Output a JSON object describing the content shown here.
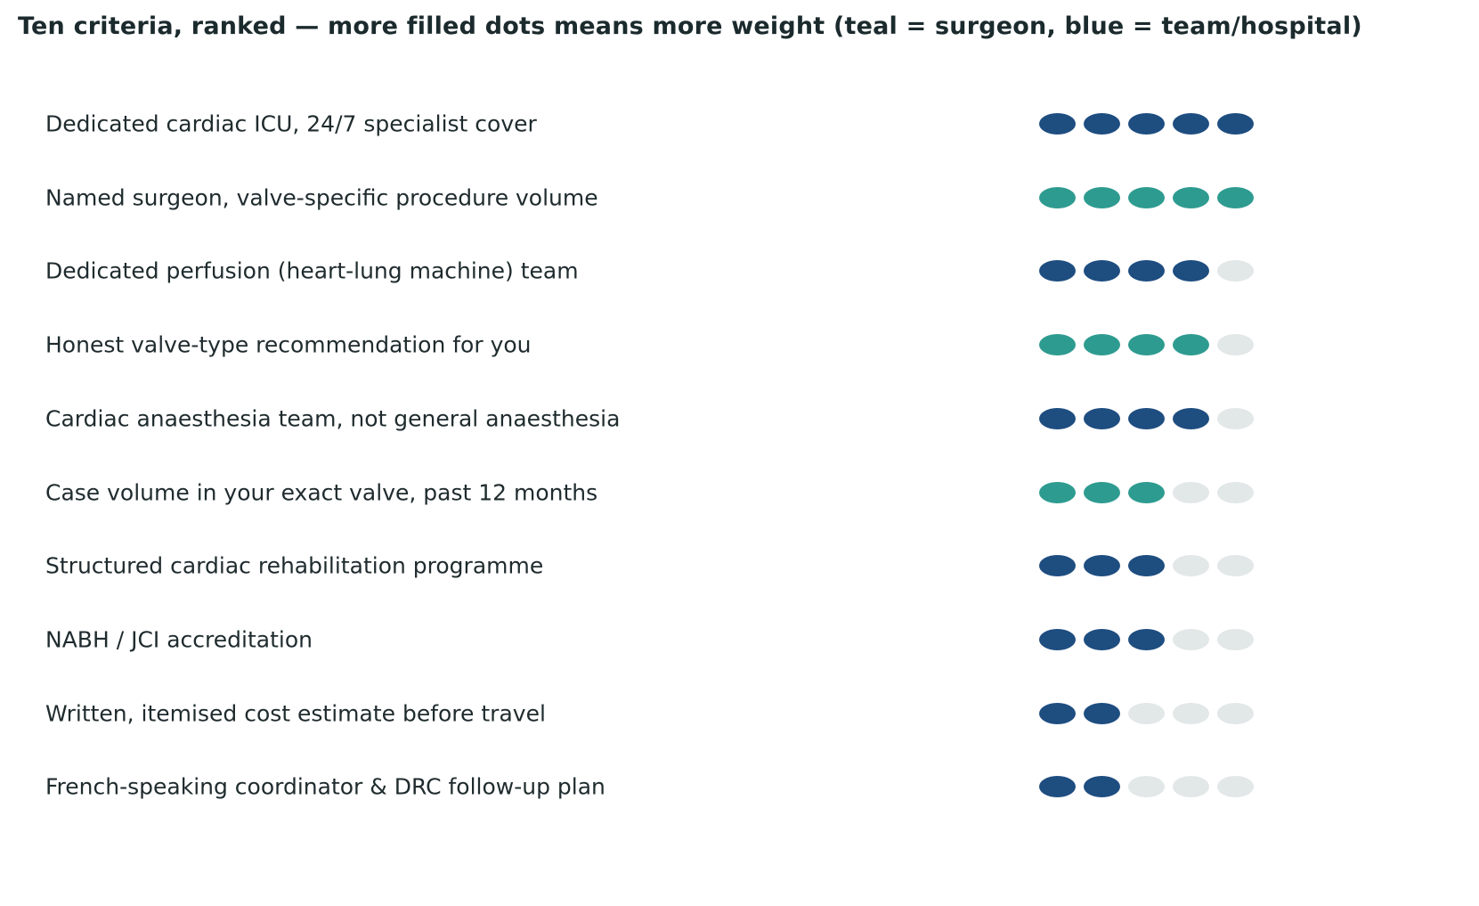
{
  "title": "Ten criteria, ranked — more filled dots means more weight (teal = surgeon, blue = team/hospital)",
  "colors": {
    "surgeon": "#2e9b90",
    "team_hospital": "#1e4d80",
    "empty": "#e2e7e8"
  },
  "chart_data": {
    "type": "dot-rating",
    "title": "Ten criteria, ranked — more filled dots means more weight (teal = surgeon, blue = team/hospital)",
    "max_dots": 5,
    "categories": [
      "Dedicated cardiac ICU, 24/7 specialist cover",
      "Named surgeon, valve-specific procedure volume",
      "Dedicated perfusion (heart-lung machine) team",
      "Honest valve-type recommendation for you",
      "Cardiac anaesthesia team, not general anaesthesia",
      "Case volume in your exact valve, past 12 months",
      "Structured cardiac rehabilitation programme",
      "NABH / JCI accreditation",
      "Written, itemised cost estimate before travel",
      "French-speaking coordinator & DRC follow-up plan"
    ],
    "values": [
      5,
      5,
      4,
      4,
      4,
      3,
      3,
      3,
      2,
      2
    ],
    "groups": [
      "team/hospital",
      "surgeon",
      "team/hospital",
      "surgeon",
      "team/hospital",
      "surgeon",
      "team/hospital",
      "team/hospital",
      "team/hospital",
      "team/hospital"
    ]
  }
}
